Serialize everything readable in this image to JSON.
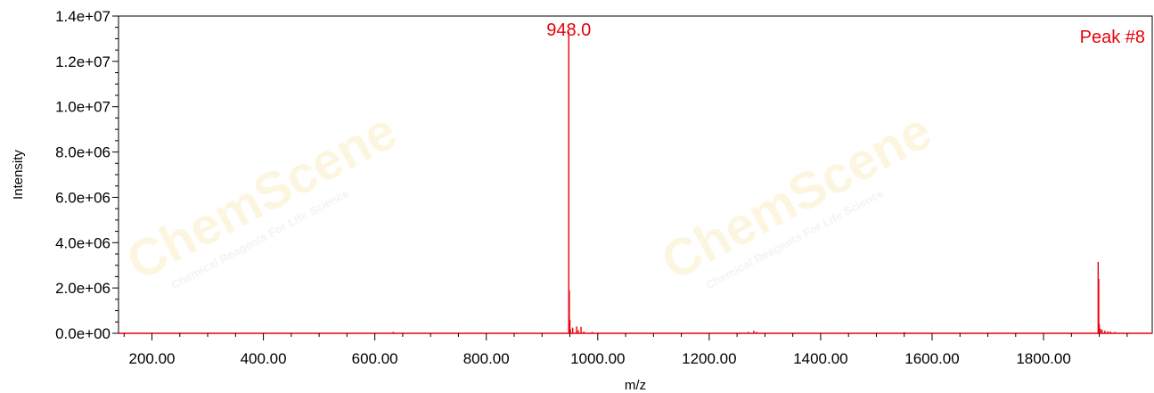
{
  "chart_data": {
    "type": "line",
    "title": "",
    "xlabel": "m/z",
    "ylabel": "Intensity",
    "xlim": [
      140,
      1995
    ],
    "ylim": [
      0,
      14000000
    ],
    "x_ticks": [
      200,
      400,
      600,
      800,
      1000,
      1200,
      1400,
      1600,
      1800
    ],
    "x_tick_labels": [
      "200.00",
      "400.00",
      "600.00",
      "800.00",
      "1000.00",
      "1200.00",
      "1400.00",
      "1600.00",
      "1800.00"
    ],
    "y_ticks": [
      0,
      2000000,
      4000000,
      6000000,
      8000000,
      10000000,
      12000000,
      14000000
    ],
    "y_tick_labels": [
      "0.0e+00",
      "2.0e+06",
      "4.0e+06",
      "6.0e+06",
      "8.0e+06",
      "1.0e+07",
      "1.2e+07",
      "1.4e+07"
    ],
    "grid": false,
    "color": "#e8000b",
    "peaks": [
      {
        "x": 633,
        "y": 60000
      },
      {
        "x": 948,
        "y": 13300000
      },
      {
        "x": 949,
        "y": 1900000
      },
      {
        "x": 950,
        "y": 600000
      },
      {
        "x": 951,
        "y": 180000
      },
      {
        "x": 955,
        "y": 250000
      },
      {
        "x": 962,
        "y": 300000
      },
      {
        "x": 965,
        "y": 140000
      },
      {
        "x": 970,
        "y": 280000
      },
      {
        "x": 975,
        "y": 80000
      },
      {
        "x": 990,
        "y": 60000
      },
      {
        "x": 1255,
        "y": 40000
      },
      {
        "x": 1270,
        "y": 60000
      },
      {
        "x": 1280,
        "y": 110000
      },
      {
        "x": 1285,
        "y": 60000
      },
      {
        "x": 1550,
        "y": 50000
      },
      {
        "x": 1898,
        "y": 3150000
      },
      {
        "x": 1899,
        "y": 2400000
      },
      {
        "x": 1900,
        "y": 400000
      },
      {
        "x": 1902,
        "y": 200000
      },
      {
        "x": 1905,
        "y": 160000
      },
      {
        "x": 1910,
        "y": 120000
      },
      {
        "x": 1915,
        "y": 90000
      },
      {
        "x": 1920,
        "y": 80000
      },
      {
        "x": 1928,
        "y": 60000
      }
    ],
    "annotations": [
      {
        "text": "948.0",
        "x": 948,
        "y": 13300000
      },
      {
        "text": "Peak #8",
        "position": "top-right"
      }
    ]
  },
  "watermark": {
    "brand": "ChemScene",
    "text": "Chemical Reagents For Life Science"
  }
}
